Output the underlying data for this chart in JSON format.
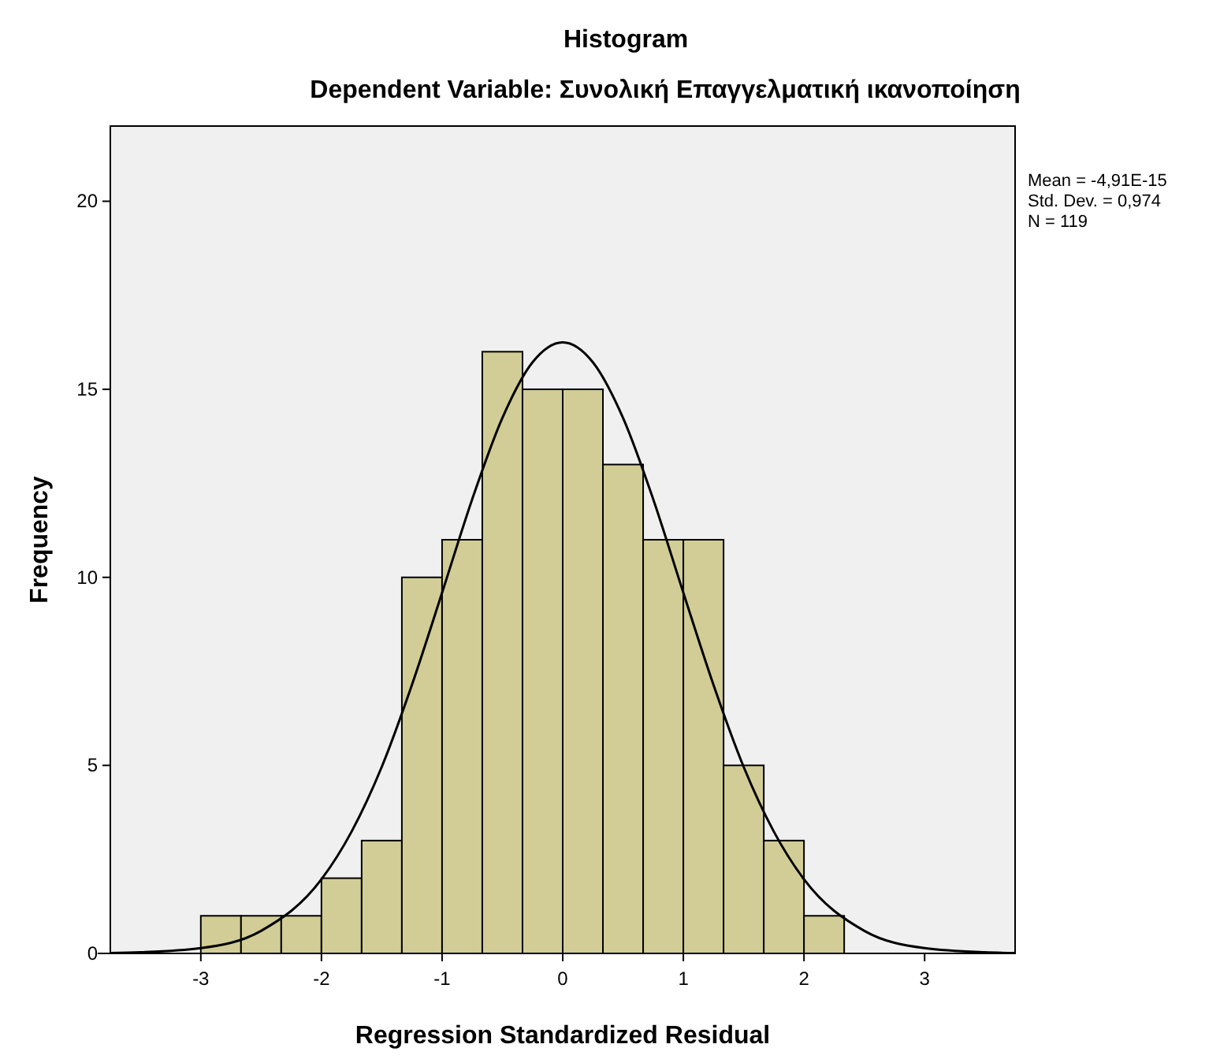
{
  "chart_data": {
    "type": "histogram",
    "title": "Histogram",
    "subtitle": "Dependent Variable: Συνολική Επαγγελματική ικανοποίηση",
    "xlabel": "Regression Standardized Residual",
    "ylabel": "Frequency",
    "bins": [
      -3,
      -2.6667,
      -2.3333,
      -2,
      -1.6667,
      -1.3333,
      -1,
      -0.6667,
      -0.3333,
      0,
      0.3333,
      0.6667,
      1,
      1.3333,
      1.6667,
      2,
      2.3333
    ],
    "values": [
      1,
      1,
      1,
      2,
      3,
      10,
      11,
      16,
      15,
      15,
      13,
      11,
      11,
      5,
      3,
      1
    ],
    "color": "#d2cd96",
    "series": [
      {
        "type": "line",
        "color": "#000000",
        "x": [
          -3.75,
          -3.5,
          -3,
          -2.5,
          -2,
          -1.75,
          -1.5,
          -1.25,
          -1,
          -0.75,
          -0.5,
          -0.25,
          0,
          0.25,
          0.5,
          0.75,
          1,
          1.25,
          1.5,
          1.75,
          2,
          2.5,
          3,
          3.5,
          3.75
        ],
        "values": [
          0.01,
          0.03,
          0.14,
          0.6,
          1.97,
          3.24,
          4.96,
          7.14,
          9.59,
          12.08,
          14.24,
          15.72,
          16.25,
          15.72,
          14.24,
          12.08,
          9.59,
          7.14,
          4.96,
          3.24,
          1.97,
          0.6,
          0.14,
          0.03,
          0.01
        ]
      }
    ],
    "xlim": [
      -3.75,
      3.75
    ],
    "xticks": [
      -3,
      -2,
      -1,
      0,
      1,
      2,
      3
    ],
    "ylim": [
      0,
      22
    ],
    "yticks": [
      0,
      5,
      10,
      15,
      20
    ],
    "grid": false,
    "annotations": [
      "Mean = -4,91E-15",
      "Std. Dev. = 0,974",
      "N = 119"
    ]
  }
}
